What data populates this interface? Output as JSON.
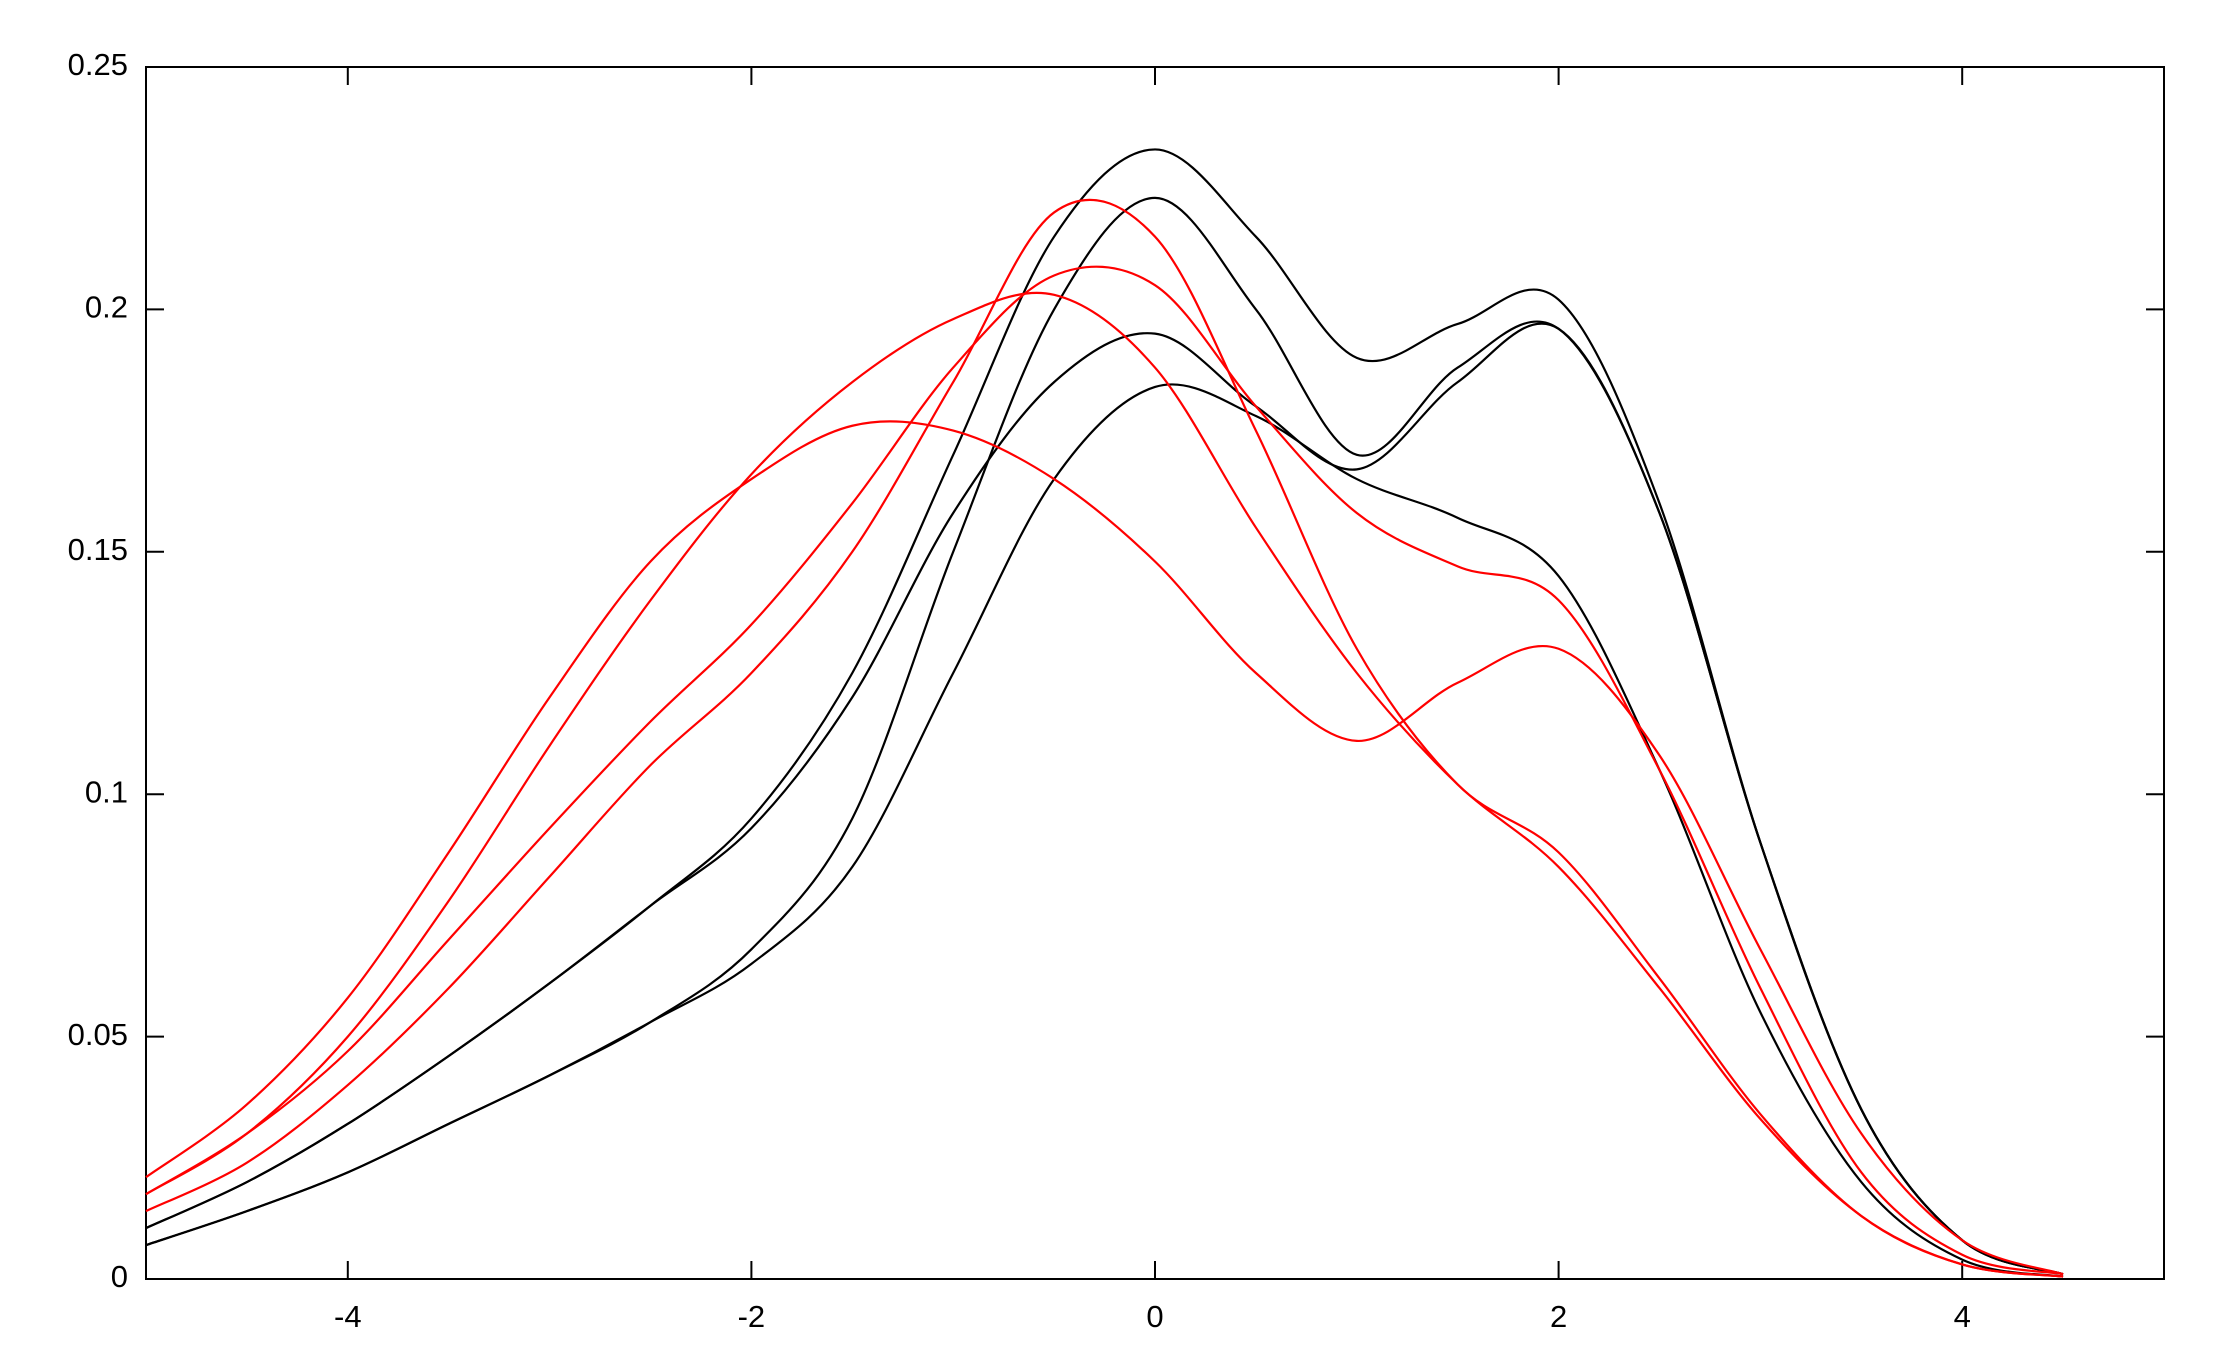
{
  "chart_data": {
    "type": "line",
    "x": [
      -5,
      -4.5,
      -4,
      -3.5,
      -3,
      -2.5,
      -2,
      -1.5,
      -1,
      -0.5,
      0,
      0.5,
      1,
      1.5,
      2,
      2.5,
      3,
      3.5,
      4,
      4.5
    ],
    "series": [
      {
        "color": "#000000",
        "values": [
          0.0105,
          0.02,
          0.032,
          0.046,
          0.061,
          0.077,
          0.095,
          0.125,
          0.17,
          0.215,
          0.233,
          0.215,
          0.19,
          0.197,
          0.202,
          0.16,
          0.09,
          0.035,
          0.008,
          0.001
        ]
      },
      {
        "color": "#000000",
        "values": [
          0.007,
          0.014,
          0.022,
          0.032,
          0.042,
          0.053,
          0.068,
          0.095,
          0.15,
          0.2,
          0.223,
          0.2,
          0.17,
          0.188,
          0.196,
          0.158,
          0.09,
          0.035,
          0.008,
          0.001
        ]
      },
      {
        "color": "#000000",
        "values": [
          0.0105,
          0.02,
          0.032,
          0.046,
          0.061,
          0.077,
          0.093,
          0.12,
          0.158,
          0.185,
          0.195,
          0.18,
          0.167,
          0.185,
          0.196,
          0.158,
          0.09,
          0.035,
          0.008,
          0.001
        ]
      },
      {
        "color": "#000000",
        "values": [
          0.007,
          0.014,
          0.022,
          0.032,
          0.042,
          0.053,
          0.065,
          0.085,
          0.125,
          0.165,
          0.184,
          0.178,
          0.165,
          0.157,
          0.145,
          0.105,
          0.055,
          0.02,
          0.004,
          0.0005
        ]
      },
      {
        "color": "#ff0000",
        "values": [
          0.021,
          0.036,
          0.058,
          0.088,
          0.12,
          0.148,
          0.165,
          0.176,
          0.175,
          0.165,
          0.148,
          0.125,
          0.111,
          0.123,
          0.13,
          0.108,
          0.068,
          0.03,
          0.008,
          0.001
        ]
      },
      {
        "color": "#ff0000",
        "values": [
          0.0175,
          0.03,
          0.05,
          0.078,
          0.11,
          0.14,
          0.166,
          0.185,
          0.198,
          0.203,
          0.188,
          0.155,
          0.125,
          0.102,
          0.085,
          0.06,
          0.033,
          0.013,
          0.003,
          0.0005
        ]
      },
      {
        "color": "#ff0000",
        "values": [
          0.014,
          0.024,
          0.04,
          0.06,
          0.083,
          0.106,
          0.125,
          0.15,
          0.185,
          0.22,
          0.215,
          0.175,
          0.13,
          0.102,
          0.088,
          0.062,
          0.034,
          0.013,
          0.003,
          0.0005
        ]
      },
      {
        "color": "#ff0000",
        "values": [
          0.0175,
          0.03,
          0.047,
          0.07,
          0.093,
          0.115,
          0.135,
          0.16,
          0.188,
          0.207,
          0.205,
          0.18,
          0.158,
          0.147,
          0.14,
          0.105,
          0.06,
          0.022,
          0.005,
          0.001
        ]
      }
    ],
    "xlim": [
      -5,
      5
    ],
    "xticks": [
      -4,
      -2,
      0,
      2,
      4
    ],
    "ylim": [
      0,
      0.25
    ],
    "yticks": [
      0,
      0.05,
      0.1,
      0.15,
      0.2,
      0.25
    ],
    "grid": false
  }
}
